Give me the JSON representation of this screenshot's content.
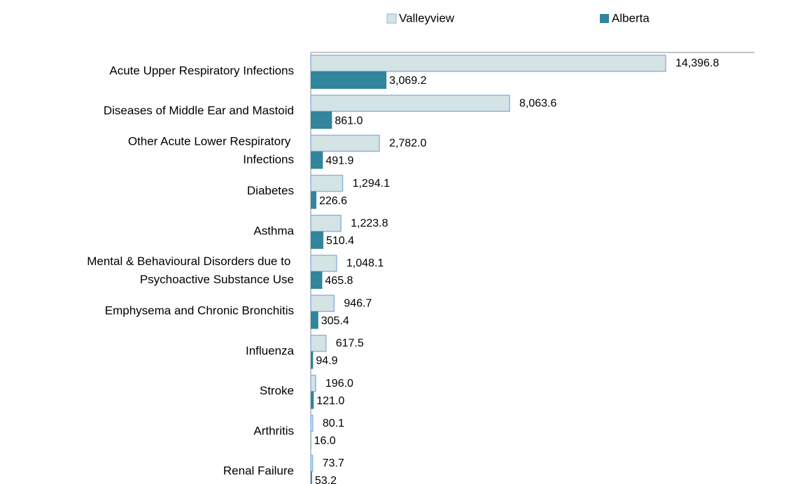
{
  "chart_data": {
    "type": "bar",
    "orientation": "horizontal",
    "categories": [
      "Acute Upper Respiratory Infections",
      "Diseases of Middle Ear and Mastoid",
      "Other Acute Lower Respiratory Infections",
      "Diabetes",
      "Asthma",
      "Mental & Behavioural Disorders due to Psychoactive Substance Use",
      "Emphysema and Chronic Bronchitis",
      "Influenza",
      "Stroke",
      "Arthritis",
      "Renal Failure"
    ],
    "series": [
      {
        "name": "Valleyview",
        "color": "#d4e3e3",
        "stroke": "#8eb4e3",
        "values": [
          14396.8,
          8063.6,
          2782.0,
          1294.1,
          1223.8,
          1048.1,
          946.7,
          617.5,
          196.0,
          80.1,
          73.7
        ],
        "value_labels": [
          "14,396.8",
          "8,063.6",
          "2,782.0",
          "1,294.1",
          "1,223.8",
          "1,048.1",
          "946.7",
          "617.5",
          "196.0",
          "80.1",
          "73.7"
        ]
      },
      {
        "name": "Alberta",
        "color": "#31859c",
        "values": [
          3069.2,
          861.0,
          491.9,
          226.6,
          510.4,
          465.8,
          305.4,
          94.9,
          121.0,
          16.0,
          53.2
        ],
        "value_labels": [
          "3,069.2",
          "861.0",
          "491.9",
          "226.6",
          "510.4",
          "465.8",
          "305.4",
          "94.9",
          "121.0",
          "16.0",
          "53.2"
        ]
      }
    ],
    "xlim": [
      0,
      18000
    ],
    "legend": "top"
  }
}
